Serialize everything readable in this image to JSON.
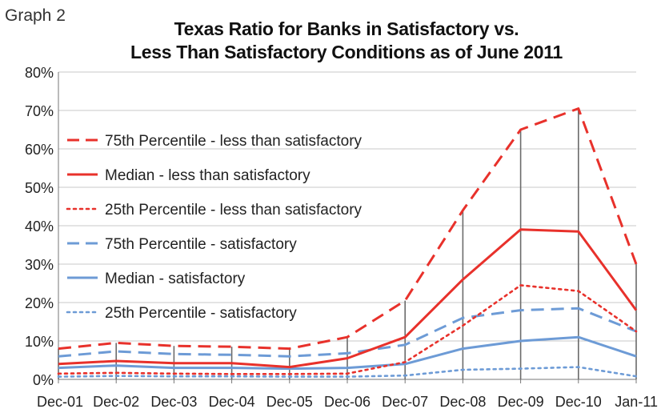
{
  "graph_label": "Graph 2",
  "chart_data": {
    "type": "line",
    "title_line1": "Texas Ratio for Banks in Satisfactory vs.",
    "title_line2": "Less Than Satisfactory Conditions as of June 2011",
    "xlabel": "",
    "ylabel": "",
    "categories": [
      "Dec-01",
      "Dec-02",
      "Dec-03",
      "Dec-04",
      "Dec-05",
      "Dec-06",
      "Dec-07",
      "Dec-08",
      "Dec-09",
      "Dec-10",
      "Jan-11"
    ],
    "y_ticks": [
      "0%",
      "10%",
      "20%",
      "30%",
      "40%",
      "50%",
      "60%",
      "70%",
      "80%"
    ],
    "ylim": [
      0,
      80
    ],
    "grid": true,
    "legend_position": "left",
    "drop_lines": true,
    "series": [
      {
        "name": "75th Percentile - less than satisfactory",
        "color": "#e8312b",
        "style": "dash",
        "values": [
          8,
          9.5,
          8.7,
          8.5,
          8,
          11,
          20.5,
          44,
          65,
          70.5,
          30
        ]
      },
      {
        "name": "Median - less than satisfactory",
        "color": "#e8312b",
        "style": "solid",
        "values": [
          4,
          4.8,
          4.2,
          4.2,
          3.2,
          5.5,
          11,
          26,
          39,
          38.5,
          18
        ]
      },
      {
        "name": "25th Percentile - less than satisfactory",
        "color": "#e8312b",
        "style": "dot",
        "values": [
          1.5,
          1.7,
          1.5,
          1.4,
          1.4,
          1.5,
          4.5,
          14,
          24.5,
          23,
          12.5
        ]
      },
      {
        "name": "75th Percentile - satisfactory",
        "color": "#6d9bd6",
        "style": "dash",
        "values": [
          6,
          7.3,
          6.6,
          6.4,
          6,
          6.8,
          9,
          16,
          18,
          18.5,
          12.5
        ]
      },
      {
        "name": "Median - satisfactory",
        "color": "#6d9bd6",
        "style": "solid",
        "values": [
          3,
          3.6,
          3,
          3,
          2.8,
          3,
          4,
          8,
          10,
          11,
          6
        ]
      },
      {
        "name": "25th Percentile - satisfactory",
        "color": "#6d9bd6",
        "style": "dot",
        "values": [
          0.7,
          0.9,
          0.8,
          0.8,
          0.7,
          0.7,
          1,
          2.5,
          2.8,
          3.2,
          0.8
        ]
      }
    ]
  }
}
